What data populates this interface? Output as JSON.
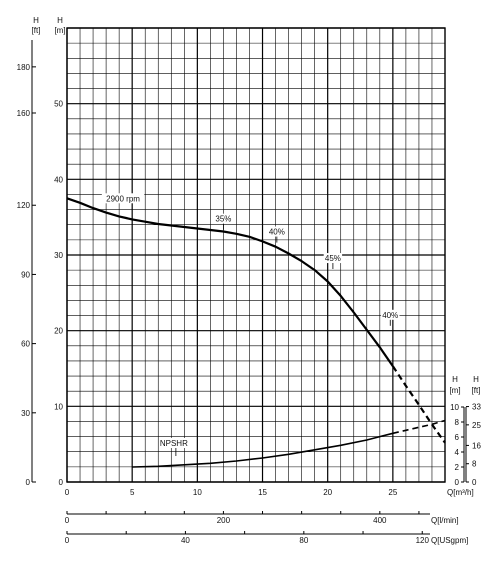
{
  "chart_data": {
    "type": "line",
    "title": "",
    "head_axis": {
      "units_m": "H [m]",
      "units_ft": "H [ft]",
      "ticks_m": [
        "0",
        "10",
        "20",
        "30",
        "40",
        "50"
      ],
      "ticks_ft": [
        "0",
        "30",
        "60",
        "90",
        "120",
        "160",
        "180"
      ],
      "ylim_m": [
        0,
        60
      ]
    },
    "npsh_axis": {
      "units_m": "H [m]",
      "units_ft": "H [ft]",
      "ticks_m": [
        "0",
        "2",
        "4",
        "6",
        "8",
        "10"
      ],
      "ticks_ft": [
        "0",
        "8",
        "16",
        "25",
        "33"
      ],
      "ylim_m": [
        0,
        10
      ]
    },
    "x_axes": [
      {
        "label": "Q[m³/h]",
        "ticks": [
          "0",
          "5",
          "10",
          "15",
          "20",
          "25"
        ],
        "xlim": [
          0,
          29
        ]
      },
      {
        "label": "Q[l/min]",
        "ticks": [
          "0",
          "200",
          "400"
        ]
      },
      {
        "label": "Q[USgpm]",
        "ticks": [
          "0",
          "40",
          "80",
          "120"
        ]
      }
    ],
    "grid": true,
    "series": [
      {
        "name": "2900 rpm",
        "x": [
          0,
          1,
          2,
          3,
          4,
          5,
          6,
          7,
          8,
          9,
          10,
          11,
          12,
          13,
          14,
          15,
          16,
          17,
          18,
          19,
          20,
          21,
          22,
          23,
          24,
          25
        ],
        "y": [
          37.5,
          36.9,
          36.2,
          35.6,
          35.1,
          34.7,
          34.4,
          34.1,
          33.9,
          33.7,
          33.5,
          33.3,
          33.1,
          32.8,
          32.4,
          31.8,
          31.1,
          30.2,
          29.2,
          28.0,
          26.5,
          24.6,
          22.4,
          20.1,
          17.8,
          15.3
        ]
      },
      {
        "name": "2900 rpm (extension)",
        "x": [
          25,
          26,
          27,
          28,
          29
        ],
        "y": [
          15.3,
          12.7,
          10.2,
          7.6,
          5.2
        ],
        "dashed": true
      },
      {
        "name": "NPSHR",
        "x": [
          5,
          7,
          9,
          11,
          13,
          15,
          17,
          19,
          21,
          23,
          25
        ],
        "y": [
          2.0,
          2.1,
          2.3,
          2.5,
          2.8,
          3.2,
          3.7,
          4.3,
          4.9,
          5.6,
          6.5
        ]
      },
      {
        "name": "NPSHR (extension)",
        "x": [
          25,
          26,
          27,
          28,
          29
        ],
        "y": [
          6.5,
          6.9,
          7.3,
          7.7,
          8.2
        ],
        "dashed": true
      }
    ],
    "annotations": [
      {
        "text": "2900 rpm",
        "x": 4.3,
        "y": 37.1
      },
      {
        "text": "35%",
        "x": 12.0,
        "y": 34.4
      },
      {
        "text": "40%",
        "x": 16.1,
        "y": 32.7
      },
      {
        "text": "45%",
        "x": 20.4,
        "y": 29.2
      },
      {
        "text": "40%",
        "x": 24.8,
        "y": 21.7
      },
      {
        "text": "NPSHR",
        "x": 8.2,
        "y": 4.8
      }
    ]
  }
}
